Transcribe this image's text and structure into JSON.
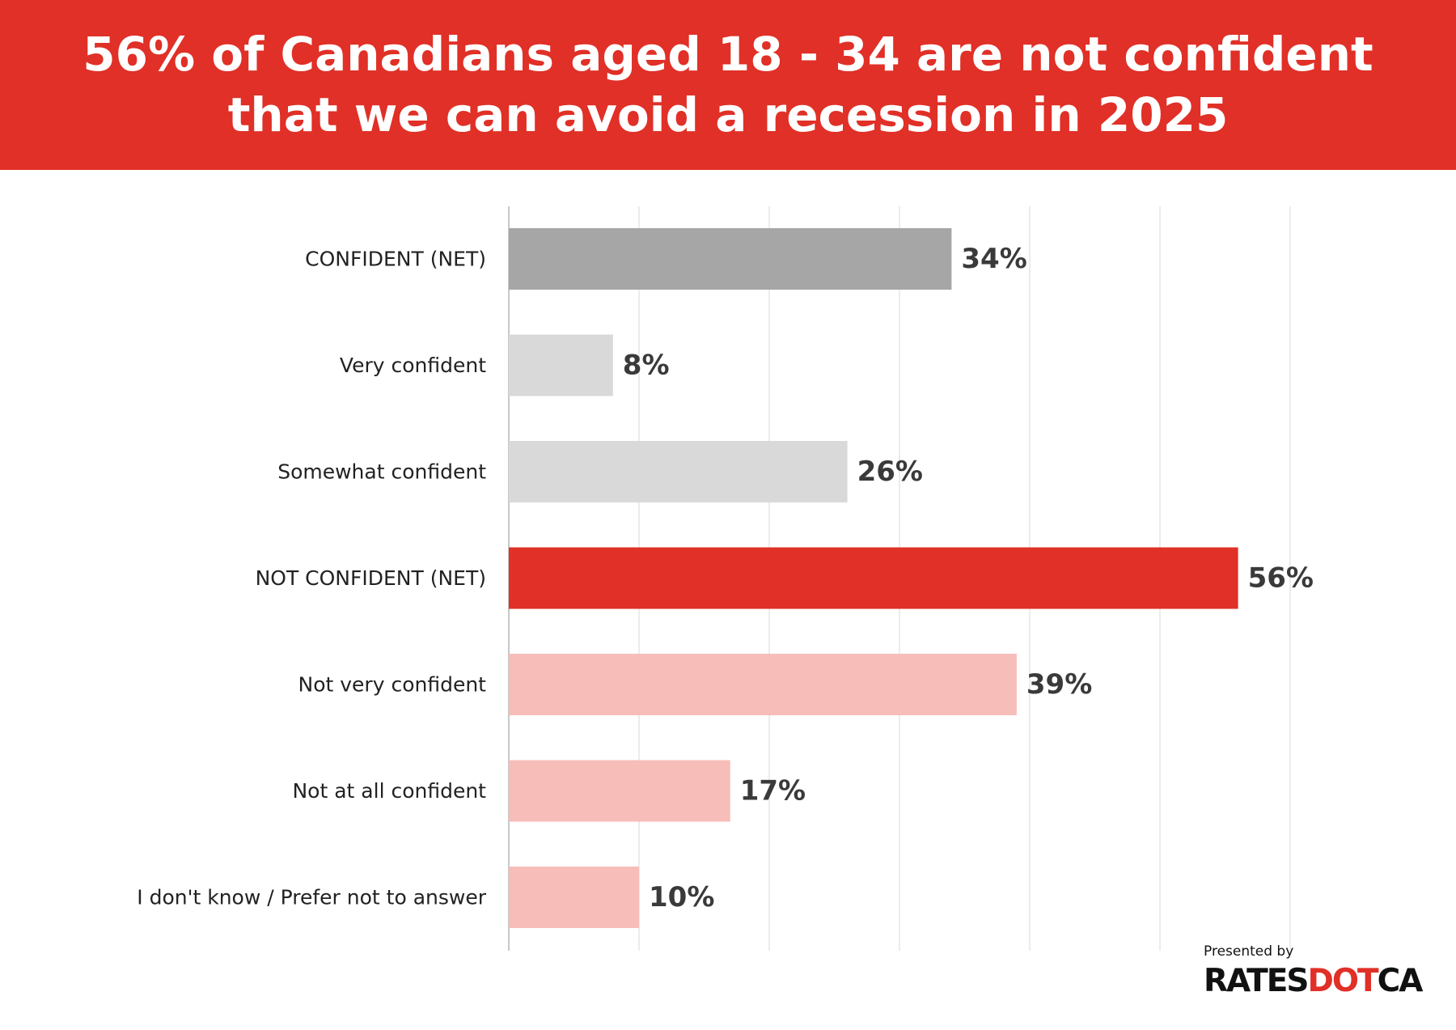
{
  "header": {
    "title_lines": [
      "56% of Canadians aged 18 - 34 are not confident",
      "that we can avoid a recession in 2025"
    ]
  },
  "colors": {
    "brand_red": "#e03027",
    "net_confident": "#a6a6a6",
    "confident": "#d9d9d9",
    "net_not_confident": "#e03027",
    "not_confident": "#f7bdb9",
    "gridline": "#ececec",
    "axis": "#c8c8c8",
    "label_text": "#222222",
    "value_text": "#3a3a3a"
  },
  "chart_data": {
    "type": "bar",
    "orientation": "horizontal",
    "title": "56% of Canadians aged 18 - 34 are not confident that we can avoid a recession in 2025",
    "xlabel": "",
    "ylabel": "",
    "xlim": [
      0,
      60
    ],
    "grid": true,
    "value_suffix": "%",
    "categories": [
      "CONFIDENT (NET)",
      "Very confident",
      "Somewhat confident",
      "NOT CONFIDENT  (NET)",
      "Not very confident",
      "Not at all confident",
      "I don't know / Prefer not to answer"
    ],
    "values": [
      34,
      8,
      26,
      56,
      39,
      17,
      10
    ],
    "bar_colors": [
      "#a6a6a6",
      "#d9d9d9",
      "#d9d9d9",
      "#e03027",
      "#f7bdb9",
      "#f7bdb9",
      "#f7bdb9"
    ]
  },
  "footer": {
    "presented_by": "Presented by",
    "logo_part1": "RATES",
    "logo_part2": "DOT",
    "logo_part3": "CA"
  }
}
